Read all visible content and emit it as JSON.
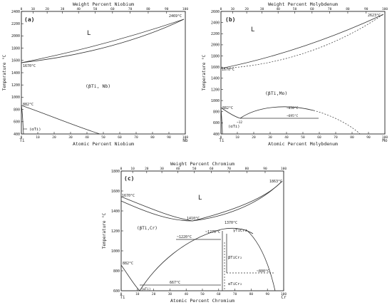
{
  "panels": [
    {
      "id": "a",
      "letter": "(a)",
      "top_title": "Weight Percent Niobium",
      "bottom_title": "Atomic Percent Niobium",
      "y_title": "Temperature °C",
      "left_elem": "Ti",
      "right_elem": "Nb",
      "phase_L": "L",
      "phase_beta": "(βTi, Nb)",
      "phase_alpha": "(αTi)",
      "ann_left_melt": "1670°C",
      "ann_right_melt": "2469°C",
      "ann_transition": "882°C",
      "y_ticks": [
        "400",
        "600",
        "800",
        "1000",
        "1200",
        "1400",
        "1600",
        "1800",
        "2000",
        "2200",
        "2400"
      ],
      "x_ticks": [
        "0",
        "10",
        "20",
        "30",
        "40",
        "50",
        "60",
        "70",
        "80",
        "90",
        "100"
      ],
      "wt_ticks": [
        "0",
        "10",
        "20",
        "30",
        "40",
        "50",
        "60",
        "70",
        "80",
        "90",
        "100"
      ]
    },
    {
      "id": "b",
      "letter": "(b)",
      "top_title": "Weight Percent Molybdenum",
      "bottom_title": "Atomic Percent Molybdenum",
      "y_title": "Temperature °C",
      "left_elem": "Ti",
      "right_elem": "Mo",
      "phase_L": "L",
      "phase_beta": "(βTi,Mo)",
      "phase_alpha": "(αTi)",
      "ann_left_melt": "1670°C",
      "ann_right_melt": "2623°C",
      "ann_transition": "882°C",
      "ann_mono1": "~850°C",
      "ann_mono2": "~695°C",
      "ann_eut": "~12",
      "y_ticks": [
        "400",
        "600",
        "800",
        "1000",
        "1200",
        "1400",
        "1600",
        "1800",
        "2000",
        "2200",
        "2400",
        "2600"
      ],
      "x_ticks": [
        "0",
        "10",
        "20",
        "30",
        "40",
        "50",
        "60",
        "70",
        "80",
        "90",
        "100"
      ],
      "wt_ticks": [
        "0",
        "10",
        "20",
        "30",
        "40",
        "50",
        "60",
        "70",
        "80",
        "90",
        "100"
      ]
    },
    {
      "id": "c",
      "letter": "(c)",
      "top_title": "Weight Percent Chromium",
      "bottom_title": "Atomic Percent Chromium",
      "y_title": "Temperature °C",
      "left_elem": "Ti",
      "right_elem": "Cr",
      "phase_L": "L",
      "phase_beta": "(βTi,Cr)",
      "phase_alpha": "(αTi)",
      "phase_gamma": "γTiCr₂",
      "phase_betaTiCr2": "βTiCr₂",
      "phase_alphaTiCr2": "αTiCr₂",
      "ann_left_melt": "1670°C",
      "ann_right_melt": "1863°C",
      "ann_min": "1410°C",
      "ann_cong": "1370°C",
      "ann_1270": "~1270°C",
      "ann_1220": "~1220°C",
      "ann_transition": "882°C",
      "ann_eutectoid": "667°C",
      "ann_800": "~800°C",
      "y_ticks": [
        "600",
        "800",
        "1000",
        "1200",
        "1400",
        "1600",
        "1800"
      ],
      "x_ticks": [
        "0",
        "10",
        "20",
        "30",
        "40",
        "50",
        "60",
        "70",
        "80",
        "90",
        "100"
      ],
      "wt_ticks": [
        "0",
        "10",
        "20",
        "30",
        "40",
        "50",
        "60",
        "70",
        "80",
        "90",
        "100"
      ]
    }
  ]
}
